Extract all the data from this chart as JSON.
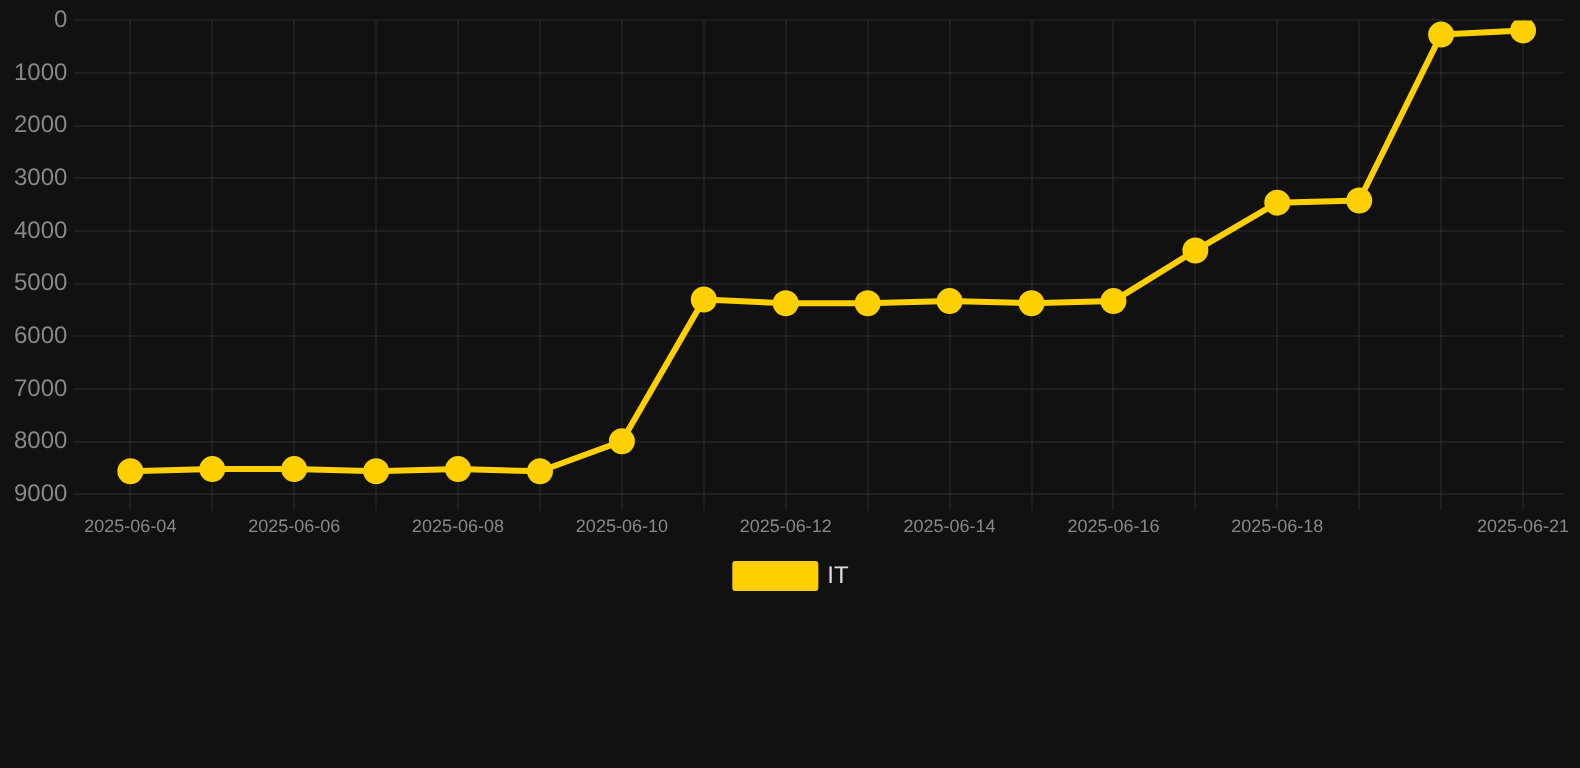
{
  "chart_data": {
    "type": "line",
    "categories": [
      "2025-06-04",
      null,
      "2025-06-06",
      null,
      "2025-06-08",
      null,
      "2025-06-10",
      null,
      "2025-06-12",
      null,
      "2025-06-14",
      null,
      "2025-06-16",
      null,
      "2025-06-18",
      null,
      null,
      "2025-06-21"
    ],
    "series": [
      {
        "name": "IT",
        "color": "#ffd000",
        "values": [
          8560,
          8520,
          8520,
          8560,
          8520,
          8560,
          7990,
          5300,
          5370,
          5370,
          5330,
          5370,
          5330,
          4370,
          3460,
          3420,
          270,
          190
        ]
      }
    ],
    "ylim": [
      9000,
      0
    ],
    "yticks": [
      0,
      1000,
      2000,
      3000,
      4000,
      5000,
      6000,
      7000,
      8000,
      9000
    ],
    "grid": true,
    "legend": "bottom",
    "marker": "circle",
    "line_style": "solid"
  }
}
